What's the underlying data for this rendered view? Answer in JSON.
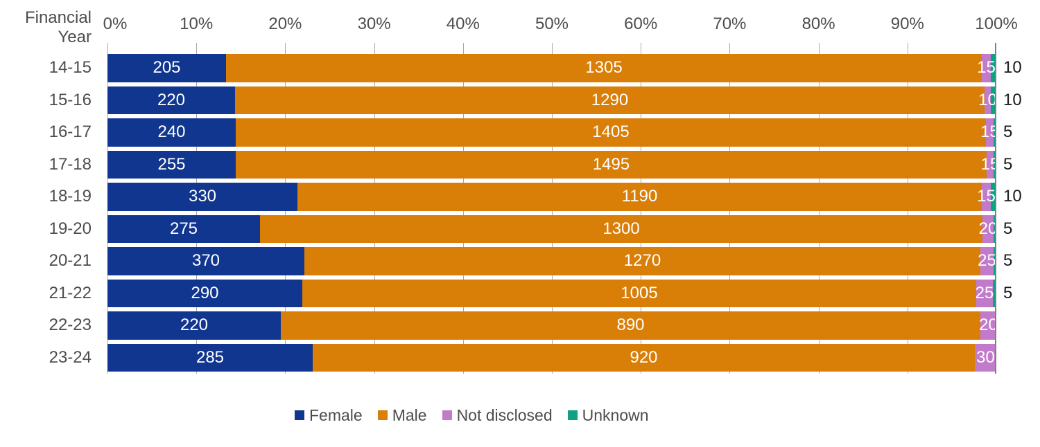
{
  "chart": {
    "axis_title_lines": [
      "Financial",
      "Year"
    ],
    "x_ticks": [
      "0%",
      "10%",
      "20%",
      "30%",
      "40%",
      "50%",
      "60%",
      "70%",
      "80%",
      "90%",
      "100%"
    ]
  },
  "chart_data": {
    "type": "bar",
    "subtype": "100-percent-stacked-horizontal",
    "title": "",
    "y_axis_title": "Financial Year",
    "x_axis": {
      "range": [
        0,
        100
      ],
      "unit": "%",
      "tick_step": 10
    },
    "gridlines": true,
    "legend_position": "bottom",
    "categories": [
      "14-15",
      "15-16",
      "16-17",
      "17-18",
      "18-19",
      "19-20",
      "20-21",
      "21-22",
      "22-23",
      "23-24"
    ],
    "series": [
      {
        "name": "Female",
        "color": "#10368F",
        "values": [
          205,
          220,
          240,
          255,
          330,
          275,
          370,
          290,
          220,
          285
        ]
      },
      {
        "name": "Male",
        "color": "#D97E07",
        "values": [
          1305,
          1290,
          1405,
          1495,
          1190,
          1300,
          1270,
          1005,
          890,
          920
        ]
      },
      {
        "name": "Not disclosed",
        "color": "#C27BCB",
        "values": [
          15,
          10,
          15,
          15,
          15,
          20,
          25,
          25,
          20,
          30
        ]
      },
      {
        "name": "Unknown",
        "color": "#10A185",
        "values": [
          10,
          10,
          5,
          5,
          10,
          5,
          5,
          5,
          0,
          0
        ]
      }
    ]
  },
  "legend": {
    "items": [
      {
        "label": "Female",
        "color": "#10368F"
      },
      {
        "label": "Male",
        "color": "#D97E07"
      },
      {
        "label": "Not disclosed",
        "color": "#C27BCB"
      },
      {
        "label": "Unknown",
        "color": "#10A185"
      }
    ]
  },
  "colors": {
    "background": "#FFFFFF",
    "gridline": "#A9A9A9",
    "axis_end_line": "#7F7F7F",
    "axis_text": "#4D4D4D",
    "bar_label_text": "#FFFFFF",
    "outside_label_text": "#1A1A1A"
  }
}
